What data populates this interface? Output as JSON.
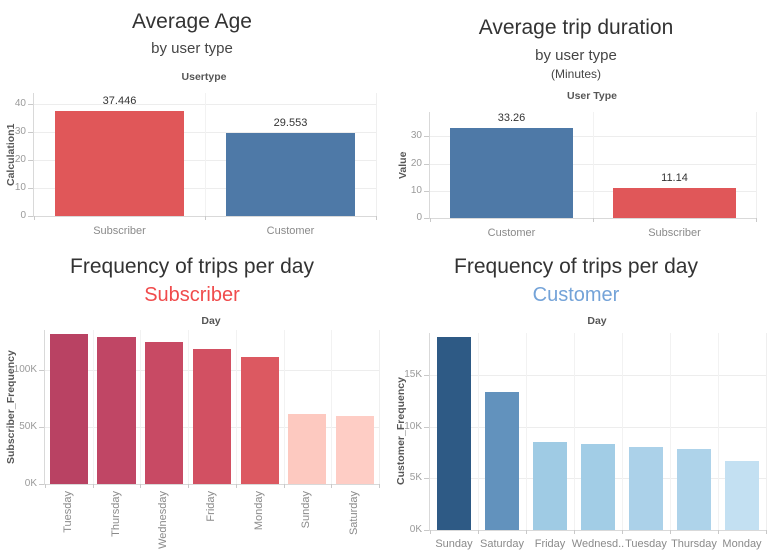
{
  "chart_data": [
    {
      "type": "bar",
      "title": "Average Age",
      "subtitle": "by user type",
      "top_axis_label": "Usertype",
      "ylabel": "Calculation1",
      "categories": [
        "Subscriber",
        "Customer"
      ],
      "values": [
        37.446,
        29.553
      ],
      "data_labels": [
        "37.446",
        "29.553"
      ],
      "bar_colors": [
        "#e05759",
        "#4e79a7"
      ],
      "y_ticks": [
        0,
        10,
        20,
        30,
        40
      ],
      "y_tick_labels": [
        "0",
        "10",
        "20",
        "30",
        "40"
      ],
      "ylim": [
        0,
        44
      ],
      "grid": true,
      "legend": "none",
      "x_label_rotation": 0
    },
    {
      "type": "bar",
      "title": "Average trip duration",
      "subtitle": "by user type",
      "unit_note": "(Minutes)",
      "top_axis_label": "User Type",
      "ylabel": "Value",
      "categories": [
        "Customer",
        "Subscriber"
      ],
      "values": [
        33.26,
        11.14
      ],
      "data_labels": [
        "33.26",
        "11.14"
      ],
      "bar_colors": [
        "#4e79a7",
        "#e05759"
      ],
      "y_ticks": [
        0,
        10,
        20,
        30
      ],
      "y_tick_labels": [
        "0",
        "10",
        "20",
        "30"
      ],
      "ylim": [
        0,
        39
      ],
      "grid": true,
      "legend": "none",
      "x_label_rotation": 0
    },
    {
      "type": "bar",
      "title": "Frequency of trips per day",
      "subtitle": "Subscriber",
      "subtitle_color": "#f04b4c",
      "top_axis_label": "Day",
      "ylabel": "Subscriber_Frequency",
      "categories": [
        "Tuesday",
        "Thursday",
        "Wednesday",
        "Friday",
        "Monday",
        "Sunday",
        "Saturday"
      ],
      "values": [
        132000,
        129000,
        125000,
        119000,
        112000,
        62000,
        60000
      ],
      "bar_colors": [
        "#b94263",
        "#c04665",
        "#c84a64",
        "#d25062",
        "#dc5961",
        "#fdc9c0",
        "#fecdc5"
      ],
      "y_ticks": [
        0,
        50000,
        100000
      ],
      "y_tick_labels": [
        "0K",
        "50K",
        "100K"
      ],
      "ylim": [
        0,
        135500
      ],
      "grid": true,
      "legend": "none",
      "x_label_rotation": 90
    },
    {
      "type": "bar",
      "title": "Frequency of trips per day",
      "subtitle": "Customer",
      "subtitle_color": "#74a3d8",
      "top_axis_label": "Day",
      "ylabel": "Customer_Frequency",
      "categories": [
        "Sunday",
        "Saturday",
        "Friday",
        "Wednesd..",
        "Tuesday",
        "Thursday",
        "Monday"
      ],
      "values": [
        18700,
        13400,
        8500,
        8300,
        8000,
        7900,
        6700
      ],
      "bar_colors": [
        "#2e5a85",
        "#6292bd",
        "#9fcbe4",
        "#a2cde6",
        "#abd1e9",
        "#aed3ea",
        "#c3e0f2"
      ],
      "y_ticks": [
        0,
        5000,
        10000,
        15000
      ],
      "y_tick_labels": [
        "0K",
        "5K",
        "10K",
        "15K"
      ],
      "ylim": [
        0,
        19100
      ],
      "grid": true,
      "legend": "none",
      "x_label_rotation": 0
    }
  ]
}
